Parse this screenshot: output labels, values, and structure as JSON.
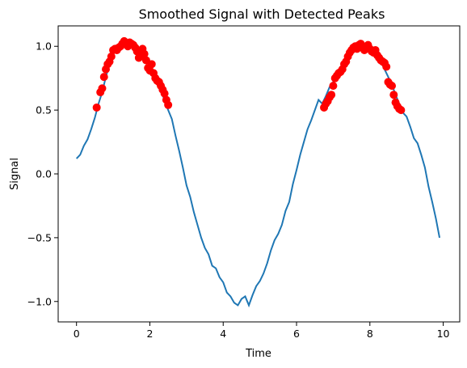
{
  "chart_data": {
    "type": "line",
    "title": "Smoothed Signal with Detected Peaks",
    "xlabel": "Time",
    "ylabel": "Signal",
    "xlim": [
      -0.5,
      10.45
    ],
    "ylim": [
      -1.16,
      1.16
    ],
    "xticks": [
      0,
      2,
      4,
      6,
      8,
      10
    ],
    "yticks": [
      -1.0,
      -0.5,
      0.0,
      0.5,
      1.0
    ],
    "xtick_labels": [
      "0",
      "2",
      "4",
      "6",
      "8",
      "10"
    ],
    "ytick_labels": [
      "−1.0",
      "−0.5",
      "0.0",
      "0.5",
      "1.0"
    ],
    "grid": false,
    "colors": {
      "line": "#1f77b4",
      "peaks": "#ff0000"
    },
    "series": [
      {
        "values_x": [
          0.0,
          0.1,
          0.2,
          0.3,
          0.4,
          0.5,
          0.6,
          0.7,
          0.8,
          0.9,
          1.0,
          1.1,
          1.2,
          1.3,
          1.4,
          1.5,
          1.6,
          1.7,
          1.8,
          1.9,
          2.0,
          2.1,
          2.2,
          2.3,
          2.4,
          2.5,
          2.6,
          2.7,
          2.8,
          2.9,
          3.0,
          3.1,
          3.2,
          3.3,
          3.4,
          3.5,
          3.6,
          3.7,
          3.8,
          3.9,
          4.0,
          4.1,
          4.2,
          4.3,
          4.4,
          4.5,
          4.6,
          4.7,
          4.8,
          4.9,
          5.0,
          5.1,
          5.2,
          5.3,
          5.4,
          5.5,
          5.6,
          5.7,
          5.8,
          5.9,
          6.0,
          6.1,
          6.2,
          6.3,
          6.4,
          6.5,
          6.6,
          6.7,
          6.8,
          6.9,
          7.0,
          7.1,
          7.2,
          7.3,
          7.4,
          7.5,
          7.6,
          7.7,
          7.8,
          7.9,
          8.0,
          8.1,
          8.2,
          8.3,
          8.4,
          8.5,
          8.6,
          8.7,
          8.8,
          8.9,
          9.0,
          9.1,
          9.2,
          9.3,
          9.4,
          9.5,
          9.6,
          9.7,
          9.8,
          9.9
        ],
        "values_y": [
          0.12,
          0.15,
          0.22,
          0.27,
          0.35,
          0.44,
          0.55,
          0.64,
          0.76,
          0.86,
          0.94,
          0.98,
          1.01,
          1.03,
          1.02,
          1.03,
          1.01,
          0.97,
          0.94,
          0.9,
          0.86,
          0.78,
          0.7,
          0.65,
          0.58,
          0.5,
          0.43,
          0.3,
          0.18,
          0.05,
          -0.09,
          -0.18,
          -0.3,
          -0.4,
          -0.5,
          -0.58,
          -0.63,
          -0.72,
          -0.74,
          -0.81,
          -0.85,
          -0.93,
          -0.96,
          -1.01,
          -1.03,
          -0.98,
          -0.96,
          -1.03,
          -0.95,
          -0.88,
          -0.84,
          -0.78,
          -0.7,
          -0.6,
          -0.52,
          -0.47,
          -0.4,
          -0.29,
          -0.22,
          -0.08,
          0.03,
          0.15,
          0.25,
          0.35,
          0.42,
          0.5,
          0.58,
          0.55,
          0.61,
          0.68,
          0.72,
          0.78,
          0.83,
          0.87,
          0.93,
          0.97,
          0.99,
          1.01,
          1.02,
          1.0,
          0.98,
          0.96,
          0.92,
          0.88,
          0.82,
          0.76,
          0.7,
          0.62,
          0.55,
          0.48,
          0.45,
          0.37,
          0.28,
          0.24,
          0.15,
          0.05,
          -0.1,
          -0.22,
          -0.35,
          -0.5
        ]
      },
      {
        "values_x": [
          0.55,
          0.65,
          0.7,
          0.75,
          0.8,
          0.85,
          0.9,
          0.95,
          1.0,
          1.05,
          1.1,
          1.15,
          1.2,
          1.25,
          1.3,
          1.35,
          1.4,
          1.45,
          1.5,
          1.55,
          1.6,
          1.65,
          1.7,
          1.75,
          1.8,
          1.85,
          1.9,
          1.95,
          2.0,
          2.05,
          2.1,
          2.15,
          2.2,
          2.25,
          2.3,
          2.35,
          2.4,
          2.45,
          2.5,
          6.75,
          6.8,
          6.85,
          6.9,
          6.95,
          7.0,
          7.05,
          7.1,
          7.15,
          7.2,
          7.25,
          7.3,
          7.35,
          7.4,
          7.45,
          7.5,
          7.55,
          7.6,
          7.65,
          7.7,
          7.75,
          7.8,
          7.85,
          7.9,
          7.95,
          8.0,
          8.05,
          8.1,
          8.15,
          8.2,
          8.25,
          8.3,
          8.35,
          8.4,
          8.45,
          8.5,
          8.55,
          8.6,
          8.65,
          8.7,
          8.75,
          8.8,
          8.85
        ],
        "values_y": [
          0.52,
          0.64,
          0.67,
          0.76,
          0.82,
          0.86,
          0.88,
          0.92,
          0.97,
          0.98,
          0.97,
          0.99,
          1.0,
          1.02,
          1.04,
          1.02,
          1.0,
          1.03,
          1.02,
          1.01,
          0.99,
          0.96,
          0.91,
          0.93,
          0.98,
          0.94,
          0.89,
          0.83,
          0.81,
          0.86,
          0.79,
          0.75,
          0.73,
          0.72,
          0.69,
          0.66,
          0.63,
          0.58,
          0.54,
          0.52,
          0.55,
          0.57,
          0.6,
          0.62,
          0.69,
          0.75,
          0.77,
          0.79,
          0.8,
          0.82,
          0.86,
          0.88,
          0.92,
          0.95,
          0.97,
          0.99,
          1.0,
          0.98,
          1.01,
          1.02,
          0.99,
          0.97,
          1.0,
          1.01,
          0.98,
          0.96,
          0.95,
          0.97,
          0.93,
          0.91,
          0.89,
          0.88,
          0.87,
          0.84,
          0.72,
          0.7,
          0.69,
          0.62,
          0.56,
          0.53,
          0.51,
          0.5
        ]
      }
    ]
  }
}
